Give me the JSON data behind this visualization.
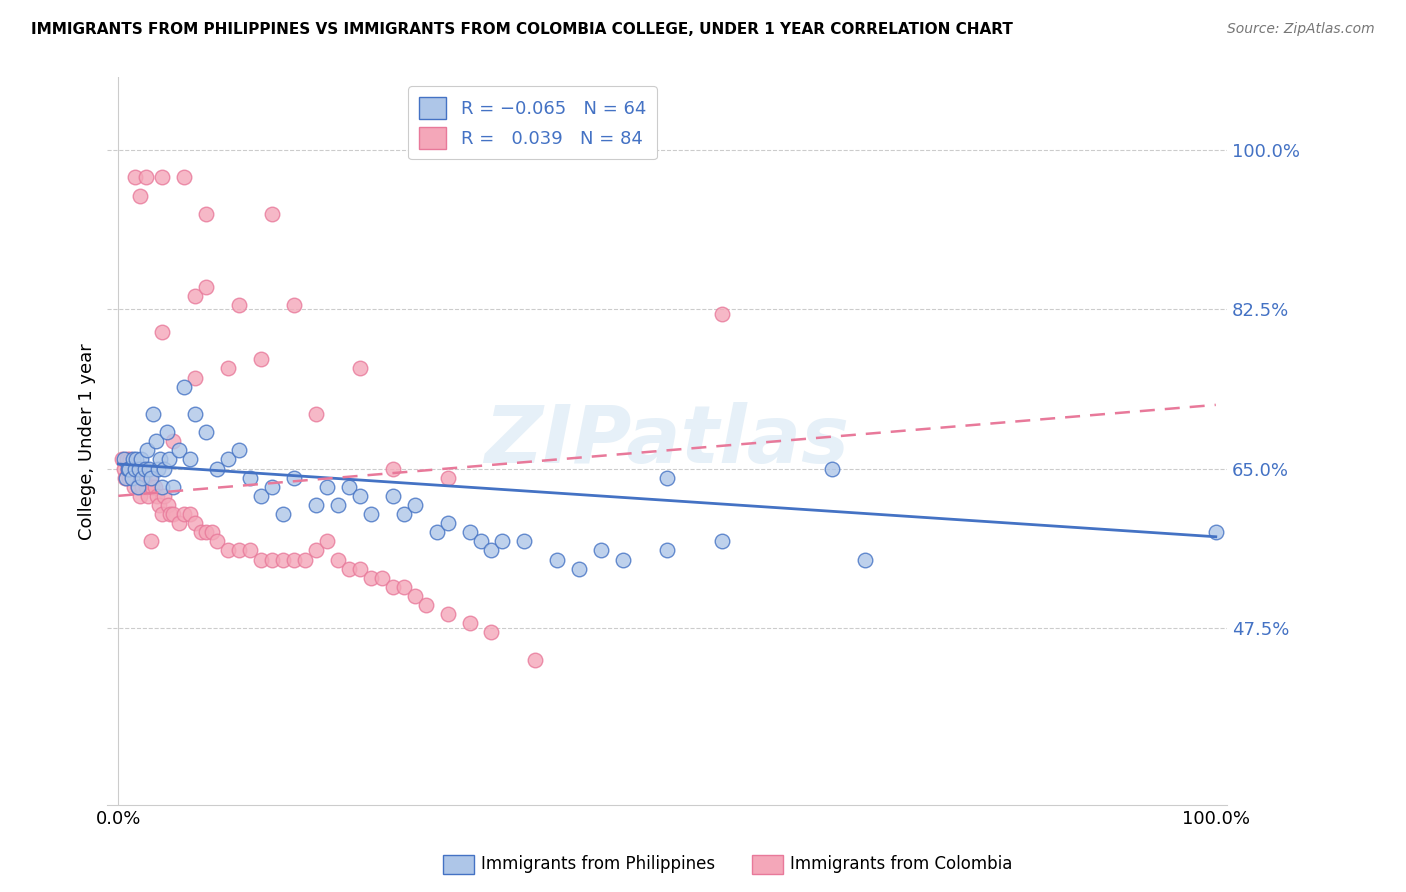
{
  "title": "IMMIGRANTS FROM PHILIPPINES VS IMMIGRANTS FROM COLOMBIA COLLEGE, UNDER 1 YEAR CORRELATION CHART",
  "source": "Source: ZipAtlas.com",
  "ylabel": "College, Under 1 year",
  "yticks": [
    0.475,
    0.65,
    0.825,
    1.0
  ],
  "ytick_labels": [
    "47.5%",
    "65.0%",
    "82.5%",
    "100.0%"
  ],
  "xtick_labels": [
    "0.0%",
    "100.0%"
  ],
  "xlim": [
    -0.01,
    1.01
  ],
  "ylim": [
    0.28,
    1.08
  ],
  "watermark": "ZIPatlas",
  "legend": {
    "philippines": {
      "R": -0.065,
      "N": 64,
      "color": "#aec6e8",
      "line_color": "#4472c4"
    },
    "colombia": {
      "R": 0.039,
      "N": 84,
      "color": "#f4a7b9",
      "line_color": "#e8799a"
    }
  },
  "blue_x": [
    0.005,
    0.007,
    0.009,
    0.01,
    0.012,
    0.013,
    0.015,
    0.016,
    0.018,
    0.019,
    0.021,
    0.022,
    0.024,
    0.026,
    0.028,
    0.03,
    0.032,
    0.034,
    0.036,
    0.038,
    0.04,
    0.042,
    0.044,
    0.046,
    0.05,
    0.055,
    0.06,
    0.065,
    0.07,
    0.08,
    0.09,
    0.1,
    0.11,
    0.12,
    0.13,
    0.14,
    0.15,
    0.16,
    0.18,
    0.19,
    0.2,
    0.21,
    0.22,
    0.23,
    0.25,
    0.26,
    0.27,
    0.29,
    0.3,
    0.32,
    0.33,
    0.34,
    0.35,
    0.37,
    0.4,
    0.42,
    0.44,
    0.46,
    0.5,
    0.55,
    0.65,
    0.68,
    0.5,
    1.0
  ],
  "blue_y": [
    0.66,
    0.64,
    0.65,
    0.65,
    0.64,
    0.66,
    0.65,
    0.66,
    0.63,
    0.65,
    0.66,
    0.64,
    0.65,
    0.67,
    0.65,
    0.64,
    0.71,
    0.68,
    0.65,
    0.66,
    0.63,
    0.65,
    0.69,
    0.66,
    0.63,
    0.67,
    0.74,
    0.66,
    0.71,
    0.69,
    0.65,
    0.66,
    0.67,
    0.64,
    0.62,
    0.63,
    0.6,
    0.64,
    0.61,
    0.63,
    0.61,
    0.63,
    0.62,
    0.6,
    0.62,
    0.6,
    0.61,
    0.58,
    0.59,
    0.58,
    0.57,
    0.56,
    0.57,
    0.57,
    0.55,
    0.54,
    0.56,
    0.55,
    0.56,
    0.57,
    0.65,
    0.55,
    0.64,
    0.58
  ],
  "pink_x": [
    0.003,
    0.005,
    0.006,
    0.008,
    0.009,
    0.01,
    0.011,
    0.012,
    0.013,
    0.014,
    0.015,
    0.016,
    0.017,
    0.018,
    0.019,
    0.02,
    0.021,
    0.022,
    0.023,
    0.025,
    0.027,
    0.029,
    0.031,
    0.033,
    0.035,
    0.037,
    0.04,
    0.042,
    0.045,
    0.047,
    0.05,
    0.055,
    0.06,
    0.065,
    0.07,
    0.075,
    0.08,
    0.085,
    0.09,
    0.1,
    0.11,
    0.12,
    0.13,
    0.14,
    0.15,
    0.16,
    0.17,
    0.18,
    0.19,
    0.2,
    0.21,
    0.22,
    0.23,
    0.24,
    0.25,
    0.26,
    0.27,
    0.28,
    0.3,
    0.32,
    0.34,
    0.38,
    0.04,
    0.07,
    0.16,
    0.22,
    0.14,
    0.07,
    0.1,
    0.13,
    0.18,
    0.25,
    0.3,
    0.08,
    0.05,
    0.02,
    0.03,
    0.015,
    0.025,
    0.04,
    0.06,
    0.08,
    0.11,
    0.55
  ],
  "pink_y": [
    0.66,
    0.65,
    0.64,
    0.66,
    0.65,
    0.64,
    0.66,
    0.65,
    0.65,
    0.63,
    0.64,
    0.65,
    0.64,
    0.63,
    0.65,
    0.62,
    0.64,
    0.63,
    0.64,
    0.63,
    0.62,
    0.64,
    0.63,
    0.63,
    0.62,
    0.61,
    0.6,
    0.62,
    0.61,
    0.6,
    0.6,
    0.59,
    0.6,
    0.6,
    0.59,
    0.58,
    0.58,
    0.58,
    0.57,
    0.56,
    0.56,
    0.56,
    0.55,
    0.55,
    0.55,
    0.55,
    0.55,
    0.56,
    0.57,
    0.55,
    0.54,
    0.54,
    0.53,
    0.53,
    0.52,
    0.52,
    0.51,
    0.5,
    0.49,
    0.48,
    0.47,
    0.44,
    0.8,
    0.84,
    0.83,
    0.76,
    0.93,
    0.75,
    0.76,
    0.77,
    0.71,
    0.65,
    0.64,
    0.93,
    0.68,
    0.95,
    0.57,
    0.97,
    0.97,
    0.97,
    0.97,
    0.85,
    0.83,
    0.82
  ]
}
